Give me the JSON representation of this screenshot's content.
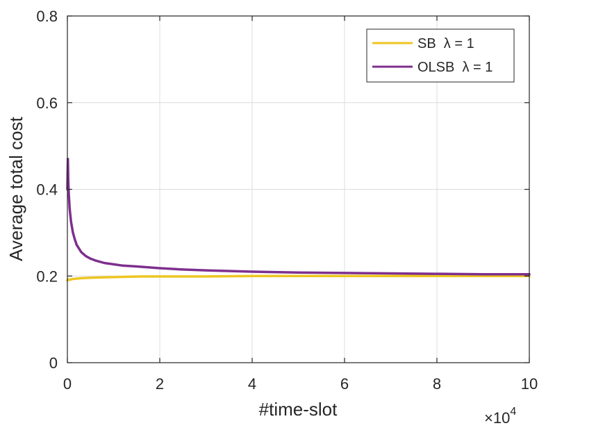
{
  "chart_data": {
    "type": "line",
    "xlabel": "#time-slot",
    "ylabel": "Average total cost",
    "x_exponent_label": "×10",
    "x_exponent_power": "4",
    "xlim": [
      0,
      100000
    ],
    "ylim": [
      0,
      0.8
    ],
    "xticks": [
      0,
      20000,
      40000,
      60000,
      80000,
      100000
    ],
    "xtick_labels": [
      "0",
      "2",
      "4",
      "6",
      "8",
      "10"
    ],
    "yticks": [
      0,
      0.2,
      0.4,
      0.6,
      0.8
    ],
    "ytick_labels": [
      "0",
      "0.2",
      "0.4",
      "0.6",
      "0.8"
    ],
    "grid": true,
    "legend_position": "top-right",
    "series": [
      {
        "name": "SB  λ = 1",
        "color": "#EDC622",
        "x": [
          0,
          200,
          500,
          1000,
          2000,
          3000,
          5000,
          8000,
          12000,
          16000,
          20000,
          25000,
          30000,
          40000,
          50000,
          60000,
          70000,
          80000,
          90000,
          100000
        ],
        "y": [
          0.19,
          0.192,
          0.191,
          0.193,
          0.194,
          0.195,
          0.196,
          0.197,
          0.198,
          0.199,
          0.199,
          0.199,
          0.199,
          0.2,
          0.2,
          0.2,
          0.2,
          0.2,
          0.2,
          0.2
        ]
      },
      {
        "name": "OLSB  λ = 1",
        "color": "#7E2F8E",
        "x": [
          0,
          100,
          200,
          300,
          500,
          800,
          1200,
          1600,
          2000,
          3000,
          4000,
          5000,
          6000,
          8000,
          10000,
          12000,
          15000,
          20000,
          25000,
          30000,
          40000,
          50000,
          60000,
          70000,
          80000,
          90000,
          100000
        ],
        "y": [
          0.4,
          0.47,
          0.42,
          0.39,
          0.355,
          0.325,
          0.3,
          0.285,
          0.272,
          0.255,
          0.246,
          0.24,
          0.236,
          0.23,
          0.227,
          0.224,
          0.222,
          0.218,
          0.215,
          0.213,
          0.21,
          0.208,
          0.207,
          0.206,
          0.205,
          0.204,
          0.204
        ]
      }
    ]
  }
}
